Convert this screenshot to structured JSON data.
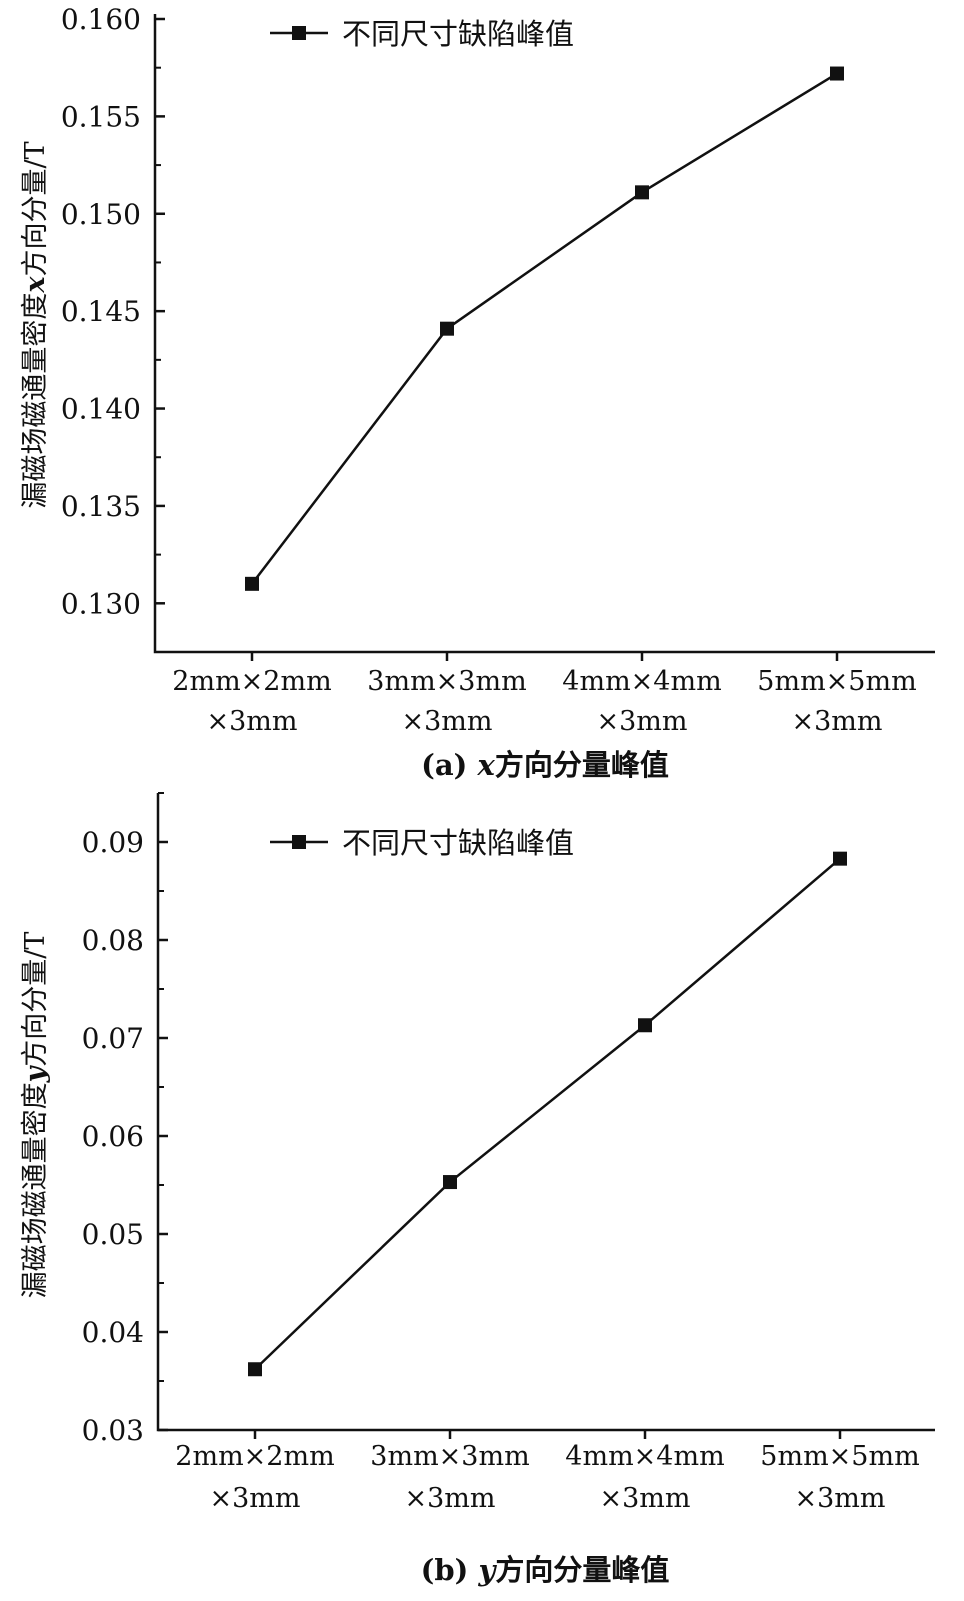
{
  "chart_data": [
    {
      "type": "line",
      "caption": "(a) x方向分量峰值",
      "caption_prefix": "(a) ",
      "caption_var": "x",
      "caption_suffix": "方向分量峰值",
      "ylabel": "漏磁场磁通量密度x方向分量/T",
      "ylabel_prefix": "漏磁场磁通量密度",
      "ylabel_var": "x",
      "ylabel_suffix": "方向分量/T",
      "categories": [
        [
          "2mm×2mm",
          "×3mm"
        ],
        [
          "3mm×3mm",
          "×3mm"
        ],
        [
          "4mm×4mm",
          "×3mm"
        ],
        [
          "5mm×5mm",
          "×3mm"
        ]
      ],
      "yticks": [
        "0.130",
        "0.135",
        "0.140",
        "0.145",
        "0.150",
        "0.155",
        "0.160"
      ],
      "ylim": [
        0.1275,
        0.16
      ],
      "series": [
        {
          "name": "不同尺寸缺陷峰值",
          "values": [
            0.131,
            0.1441,
            0.1511,
            0.1572
          ]
        }
      ],
      "legend": "top-left",
      "grid": false
    },
    {
      "type": "line",
      "caption": "(b) y方向分量峰值",
      "caption_prefix": "(b) ",
      "caption_var": "y",
      "caption_suffix": "方向分量峰值",
      "ylabel": "漏磁场磁通量密度y方向分量/T",
      "ylabel_prefix": "漏磁场磁通量密度",
      "ylabel_var": "y",
      "ylabel_suffix": "方向分量/T",
      "categories": [
        [
          "2mm×2mm",
          "×3mm"
        ],
        [
          "3mm×3mm",
          "×3mm"
        ],
        [
          "4mm×4mm",
          "×3mm"
        ],
        [
          "5mm×5mm",
          "×3mm"
        ]
      ],
      "yticks": [
        "0.03",
        "0.04",
        "0.05",
        "0.06",
        "0.07",
        "0.08",
        "0.09"
      ],
      "ylim": [
        0.03,
        0.095
      ],
      "series": [
        {
          "name": "不同尺寸缺陷峰值",
          "values": [
            0.0362,
            0.0553,
            0.0713,
            0.0883
          ]
        }
      ],
      "legend": "top-left",
      "grid": false
    }
  ]
}
